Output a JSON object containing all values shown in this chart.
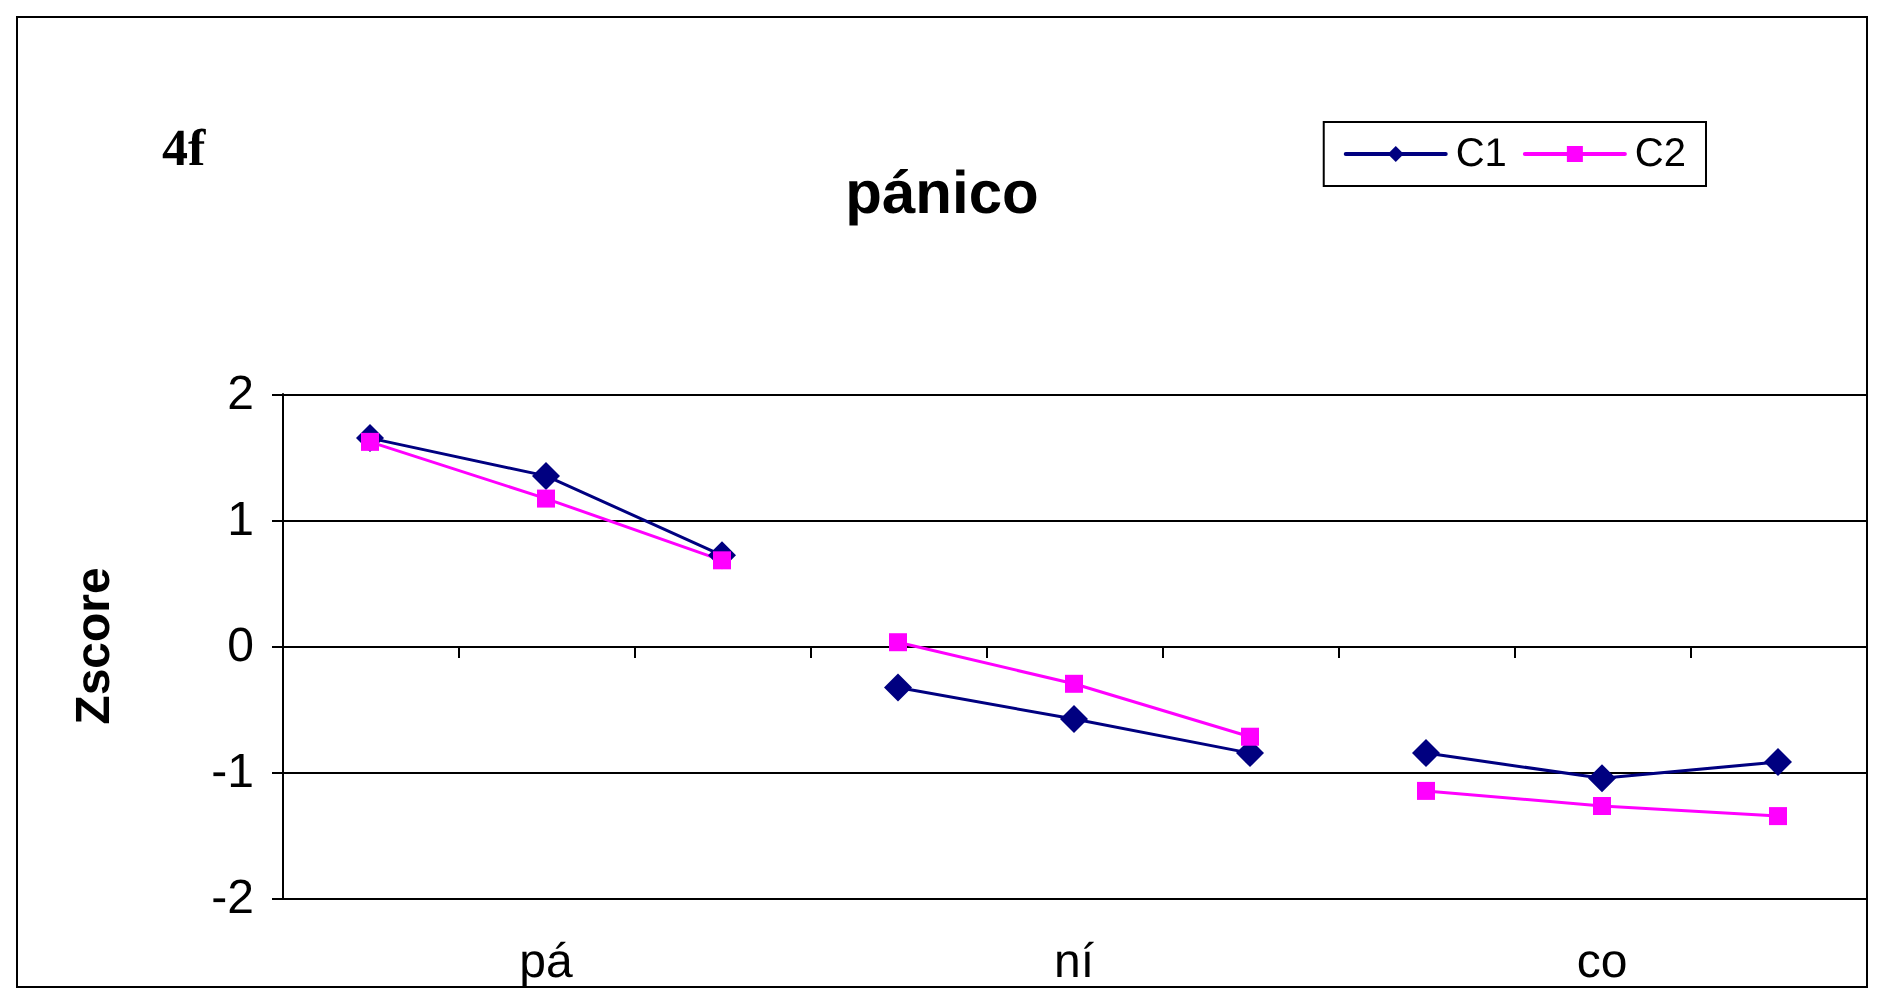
{
  "chart_data": {
    "type": "line",
    "title": "pánico",
    "ylabel": "Zscore",
    "annotations": [
      "4f"
    ],
    "categories": [
      null,
      "pá",
      null,
      null,
      "ní",
      null,
      null,
      "co",
      null
    ],
    "series": [
      {
        "name": "C1",
        "color": "#000080",
        "marker": "diamond",
        "values": [
          1.65,
          1.35,
          0.72,
          null,
          null,
          null,
          null,
          null,
          null
        ]
      },
      {
        "color": "#000080",
        "marker": "diamond",
        "values": [
          null,
          null,
          null,
          -0.33,
          -0.58,
          -0.85,
          null,
          null,
          null
        ]
      },
      {
        "color": "#000080",
        "marker": "diamond",
        "values": [
          null,
          null,
          null,
          null,
          null,
          null,
          -0.85,
          -1.05,
          -0.92
        ]
      },
      {
        "name": "C2",
        "color": "#ff00ff",
        "marker": "square",
        "values": [
          1.62,
          1.17,
          0.68,
          null,
          null,
          null,
          null,
          null,
          null
        ]
      },
      {
        "color": "#ff00ff",
        "marker": "square",
        "values": [
          null,
          null,
          null,
          0.03,
          -0.3,
          -0.72,
          null,
          null,
          null
        ]
      },
      {
        "color": "#ff00ff",
        "marker": "square",
        "values": [
          null,
          null,
          null,
          null,
          null,
          null,
          -1.15,
          -1.27,
          -1.35
        ]
      }
    ],
    "ylim": [
      -2,
      2
    ],
    "yticks": [
      -2,
      -1,
      0,
      1,
      2
    ],
    "grid": "y",
    "legend": "top right",
    "line_style": "solid"
  }
}
